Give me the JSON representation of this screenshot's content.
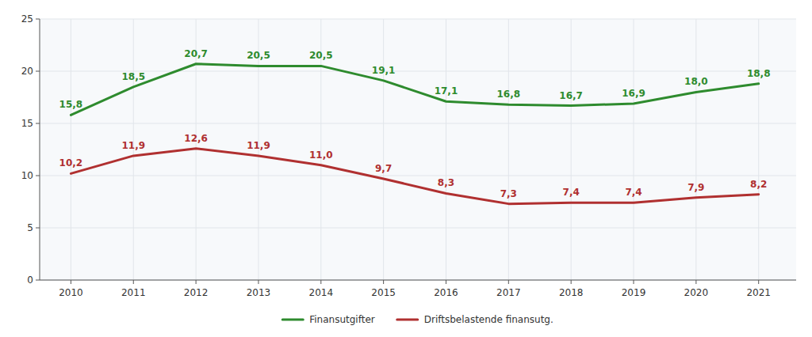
{
  "chart_data": {
    "type": "line",
    "x": [
      2010,
      2011,
      2012,
      2013,
      2014,
      2015,
      2016,
      2017,
      2018,
      2019,
      2020,
      2021
    ],
    "xlim": [
      2009.5,
      2021.6
    ],
    "xticks": [
      2010,
      2011,
      2012,
      2013,
      2014,
      2015,
      2016,
      2017,
      2018,
      2019,
      2020,
      2021
    ],
    "ylim": [
      0,
      25
    ],
    "yticks": [
      0,
      5,
      10,
      15,
      20,
      25
    ],
    "grid": true,
    "legend": "bottom",
    "data_labels": true,
    "series": [
      {
        "name": "Finansutgifter",
        "color": "#2e8b2e",
        "values": [
          15.8,
          18.5,
          20.7,
          20.5,
          20.5,
          19.1,
          17.1,
          16.8,
          16.7,
          16.9,
          18.0,
          18.8
        ],
        "value_labels": [
          "15,8",
          "18,5",
          "20,7",
          "20,5",
          "20,5",
          "19,1",
          "17,1",
          "16,8",
          "16,7",
          "16,9",
          "18,0",
          "18,8"
        ]
      },
      {
        "name": "Driftsbelastende finansutg.",
        "color": "#b03030",
        "values": [
          10.2,
          11.9,
          12.6,
          11.9,
          11.0,
          9.7,
          8.3,
          7.3,
          7.4,
          7.4,
          7.9,
          8.2
        ],
        "value_labels": [
          "10,2",
          "11,9",
          "12,6",
          "11,9",
          "11,0",
          "9,7",
          "8,3",
          "7,3",
          "7,4",
          "7,4",
          "7,9",
          "8,2"
        ]
      }
    ]
  }
}
